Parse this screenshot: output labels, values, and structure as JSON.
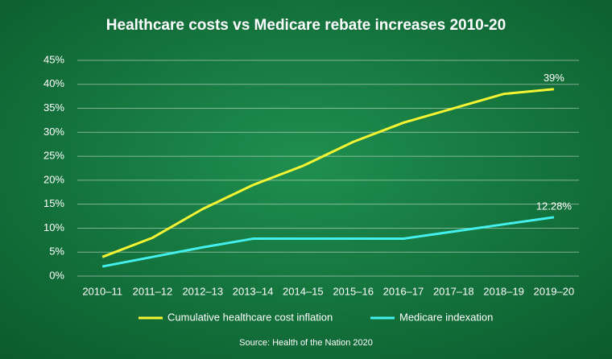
{
  "chart_data": {
    "type": "line",
    "title": "Healthcare costs vs Medicare rebate increases 2010-20",
    "source": "Source: Health of the Nation 2020",
    "categories": [
      "2010–11",
      "2011–12",
      "2012–13",
      "2013–14",
      "2014–15",
      "2015–16",
      "2016–17",
      "2017–18",
      "2018–19",
      "2019–20"
    ],
    "series": [
      {
        "name": "Cumulative healthcare cost inflation",
        "color": "#f5f533",
        "values": [
          4,
          8,
          14,
          19,
          23,
          28,
          32,
          35,
          38,
          39
        ],
        "value_labels": [
          null,
          null,
          null,
          null,
          null,
          null,
          null,
          null,
          null,
          "39%"
        ]
      },
      {
        "name": "Medicare indexation",
        "color": "#44f0ee",
        "values": [
          2,
          4,
          6,
          7.8,
          7.8,
          7.8,
          7.8,
          9.3,
          10.8,
          12.28
        ],
        "value_labels": [
          null,
          null,
          null,
          null,
          null,
          null,
          null,
          null,
          null,
          "12.28%"
        ]
      }
    ],
    "ylim": [
      0,
      45
    ],
    "yticks": [
      {
        "value": 0,
        "label": "0%"
      },
      {
        "value": 5,
        "label": "5%"
      },
      {
        "value": 10,
        "label": "10%"
      },
      {
        "value": 15,
        "label": "15%"
      },
      {
        "value": 20,
        "label": "20%"
      },
      {
        "value": 25,
        "label": "25%"
      },
      {
        "value": 30,
        "label": "30%"
      },
      {
        "value": 35,
        "label": "35%"
      },
      {
        "value": 40,
        "label": "40%"
      },
      {
        "value": 45,
        "label": "45%"
      }
    ],
    "grid": true,
    "legend": "bottom"
  }
}
